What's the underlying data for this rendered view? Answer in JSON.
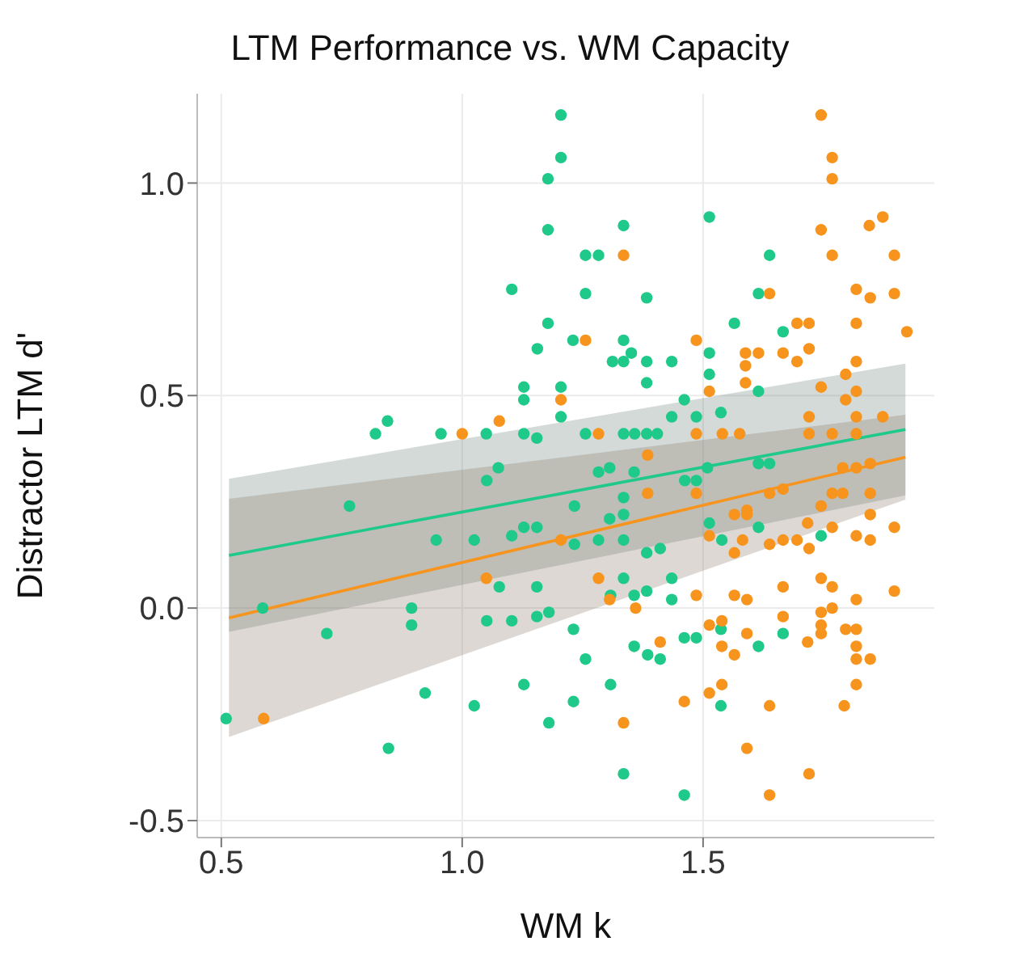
{
  "chart_data": {
    "type": "scatter",
    "title": "LTM Performance vs. WM Capacity",
    "xlabel": "WM k",
    "ylabel": "Distractor LTM d'",
    "xlim": [
      0.45,
      1.98
    ],
    "xticks": [
      0.5,
      {
        "value": 1,
        "label": "1.0"
      },
      1.5
    ],
    "ylim": [
      -0.54,
      1.21
    ],
    "yticks": [
      -0.5,
      {
        "value": 0,
        "label": "0.0"
      },
      0.5,
      {
        "value": 1,
        "label": "1.0"
      }
    ],
    "grid": true,
    "marker": "circle",
    "series": [
      {
        "color": "#1fc98a",
        "x": [
          1.205,
          1.205,
          1.178,
          1.178,
          1.103,
          1.178,
          1.156,
          1.23,
          1.128,
          1.128,
          1.205,
          1.205,
          0.82,
          0.845,
          0.956,
          1.05,
          1.128,
          1.155,
          1.335,
          1.256,
          1.283,
          1.513,
          1.638,
          1.256,
          1.383,
          1.615,
          1.565,
          1.666,
          1.335,
          1.351,
          1.312,
          1.335,
          1.383,
          1.435,
          1.513,
          1.513,
          1.383,
          1.461,
          1.615,
          1.435,
          1.486,
          1.537,
          1.256,
          1.335,
          1.358,
          1.383,
          1.405,
          1.075,
          1.051,
          0.766,
          0.946,
          1.025,
          1.103,
          1.128,
          1.155,
          0.586,
          0.895,
          0.895,
          0.719,
          1.051,
          1.103,
          1.155,
          1.18,
          1.077,
          1.155,
          1.231,
          0.51,
          0.923,
          1.025,
          1.128,
          1.18,
          1.231,
          0.847,
          1.615,
          1.745,
          1.539,
          1.513,
          1.335,
          1.308,
          1.357,
          1.383,
          1.435,
          1.435,
          1.383,
          1.411,
          1.537,
          1.666,
          1.615,
          1.461,
          1.486,
          1.357,
          1.385,
          1.411,
          1.256,
          1.308,
          1.537,
          1.335,
          1.461,
          1.283,
          1.306,
          1.357,
          1.509,
          1.615,
          1.638,
          1.462,
          1.486,
          1.233,
          1.335,
          1.283,
          1.335,
          1.233,
          1.306,
          1.335
        ],
        "values": [
          1.16,
          1.06,
          1.01,
          0.89,
          0.75,
          0.67,
          0.61,
          0.63,
          0.52,
          0.49,
          0.52,
          0.45,
          0.41,
          0.44,
          0.41,
          0.41,
          0.41,
          0.4,
          0.9,
          0.83,
          0.83,
          0.92,
          0.83,
          0.74,
          0.73,
          0.74,
          0.67,
          0.65,
          0.63,
          0.6,
          0.58,
          0.58,
          0.58,
          0.58,
          0.6,
          0.55,
          0.53,
          0.49,
          0.51,
          0.45,
          0.45,
          0.46,
          0.41,
          0.41,
          0.41,
          0.41,
          0.41,
          0.33,
          0.3,
          0.24,
          0.16,
          0.16,
          0.17,
          0.19,
          0.19,
          0.0,
          0.0,
          -0.04,
          -0.06,
          -0.03,
          -0.03,
          -0.02,
          -0.01,
          0.05,
          0.05,
          -0.05,
          -0.26,
          -0.2,
          -0.23,
          -0.18,
          -0.27,
          -0.22,
          -0.33,
          0.19,
          0.17,
          0.16,
          0.2,
          0.07,
          0.03,
          0.03,
          0.04,
          0.07,
          0.02,
          0.13,
          0.14,
          -0.05,
          -0.06,
          -0.09,
          -0.07,
          -0.07,
          -0.09,
          -0.11,
          -0.12,
          -0.12,
          -0.18,
          -0.23,
          -0.39,
          -0.44,
          0.32,
          0.33,
          0.32,
          0.33,
          0.34,
          0.34,
          0.3,
          0.3,
          0.24,
          0.26,
          0.16,
          0.16,
          0.15,
          0.21,
          0.22
        ]
      },
      {
        "color": "#f7941e",
        "x": [
          1.0,
          1.077,
          1.205,
          1.745,
          1.768,
          1.768,
          1.745,
          1.768,
          1.845,
          1.873,
          1.897,
          1.335,
          1.638,
          1.818,
          1.847,
          1.897,
          1.256,
          1.486,
          1.695,
          1.72,
          1.818,
          1.923,
          1.588,
          1.615,
          1.588,
          1.666,
          1.695,
          1.72,
          1.818,
          1.796,
          1.588,
          1.513,
          1.745,
          1.283,
          1.486,
          1.385,
          1.796,
          1.818,
          1.72,
          1.818,
          1.873,
          1.72,
          1.768,
          1.818,
          1.576,
          1.54,
          0.588,
          1.05,
          1.205,
          1.283,
          1.306,
          1.36,
          1.486,
          1.565,
          1.591,
          1.666,
          1.745,
          1.768,
          1.897,
          1.818,
          1.513,
          1.565,
          1.582,
          1.638,
          1.666,
          1.695,
          1.72,
          1.717,
          1.768,
          1.818,
          1.847,
          1.745,
          1.847,
          1.897,
          1.565,
          1.591,
          1.666,
          1.745,
          1.745,
          1.745,
          1.768,
          1.513,
          1.539,
          1.591,
          1.539,
          1.565,
          1.717,
          1.796,
          1.818,
          1.818,
          1.818,
          1.847,
          1.411,
          1.513,
          1.539,
          1.461,
          1.638,
          1.818,
          1.793,
          1.335,
          1.591,
          1.72,
          1.638,
          1.79,
          1.818,
          1.847,
          1.768,
          1.79,
          1.847,
          1.666,
          1.638,
          1.486,
          1.385,
          1.591
        ],
        "values": [
          0.41,
          0.44,
          0.49,
          1.16,
          1.06,
          1.01,
          0.89,
          0.83,
          0.9,
          0.92,
          0.83,
          0.83,
          0.74,
          0.75,
          0.73,
          0.74,
          0.63,
          0.63,
          0.67,
          0.67,
          0.67,
          0.65,
          0.6,
          0.6,
          0.57,
          0.6,
          0.58,
          0.61,
          0.58,
          0.55,
          0.53,
          0.51,
          0.52,
          0.41,
          0.41,
          0.36,
          0.49,
          0.51,
          0.45,
          0.45,
          0.45,
          0.41,
          0.41,
          0.41,
          0.41,
          0.41,
          -0.26,
          0.07,
          0.16,
          0.07,
          0.02,
          0.0,
          0.03,
          0.03,
          0.02,
          0.05,
          0.07,
          0.05,
          0.04,
          0.02,
          0.17,
          0.13,
          0.16,
          0.15,
          0.16,
          0.16,
          0.14,
          0.2,
          0.19,
          0.17,
          0.16,
          0.24,
          0.22,
          0.19,
          0.22,
          0.22,
          -0.02,
          -0.01,
          -0.04,
          -0.06,
          0.0,
          -0.04,
          -0.03,
          -0.06,
          -0.09,
          -0.11,
          -0.08,
          -0.05,
          -0.05,
          -0.09,
          -0.12,
          -0.12,
          -0.08,
          -0.2,
          -0.18,
          -0.22,
          -0.23,
          -0.18,
          -0.23,
          -0.27,
          -0.33,
          -0.39,
          -0.44,
          0.33,
          0.33,
          0.34,
          0.27,
          0.27,
          0.27,
          0.28,
          0.27,
          0.27,
          0.27,
          0.23
        ]
      },
      {
        "type": "line",
        "color": "#1fc98a",
        "marker": "none",
        "line_style": "solid",
        "x": [
          0.516,
          1.92
        ],
        "values": [
          0.124,
          0.42
        ],
        "lower": [
          -0.056,
          0.265
        ],
        "upper": [
          0.304,
          0.575
        ]
      },
      {
        "type": "line",
        "color": "#f7941e",
        "marker": "none",
        "line_style": "solid",
        "x": [
          0.516,
          1.92
        ],
        "values": [
          -0.023,
          0.355
        ],
        "lower": [
          -0.303,
          0.255
        ],
        "upper": [
          0.257,
          0.455
        ]
      }
    ]
  }
}
